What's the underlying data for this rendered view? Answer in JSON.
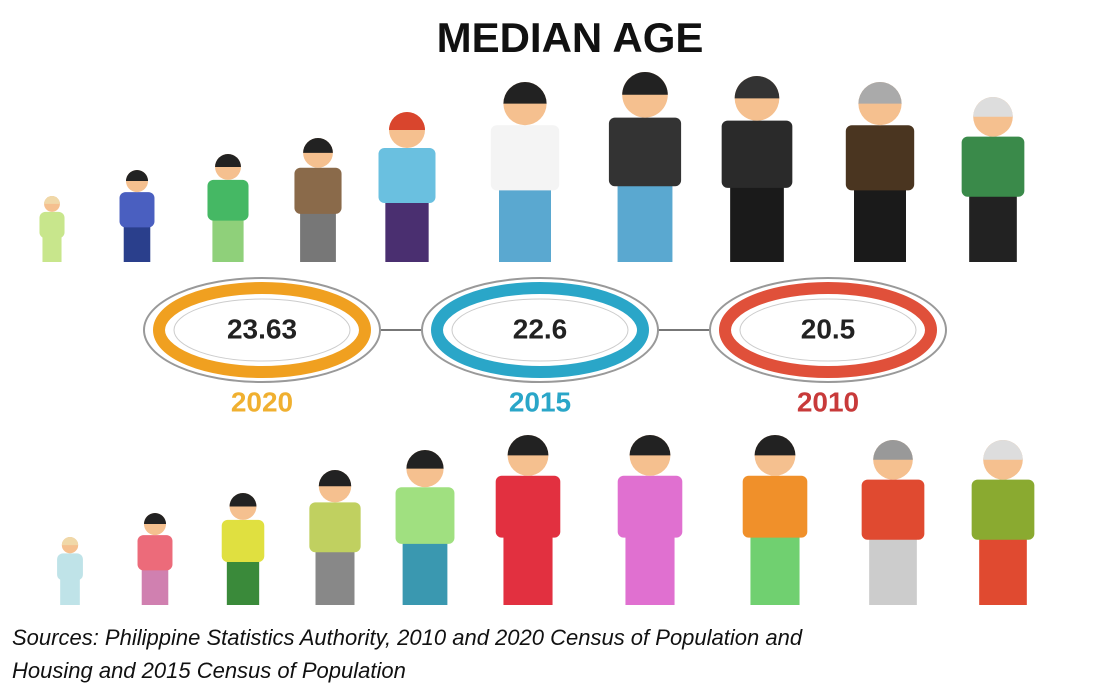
{
  "title": "MEDIAN AGE",
  "items": [
    {
      "value": 23.63,
      "year": "2020"
    },
    {
      "value": 22.6,
      "year": "2015"
    },
    {
      "value": 20.5,
      "year": "2010"
    }
  ],
  "source": [
    "Sources: Philippine Statistics Authority, 2010 and 2020 Census of Population and",
    "Housing and 2015 Census of Population"
  ]
}
